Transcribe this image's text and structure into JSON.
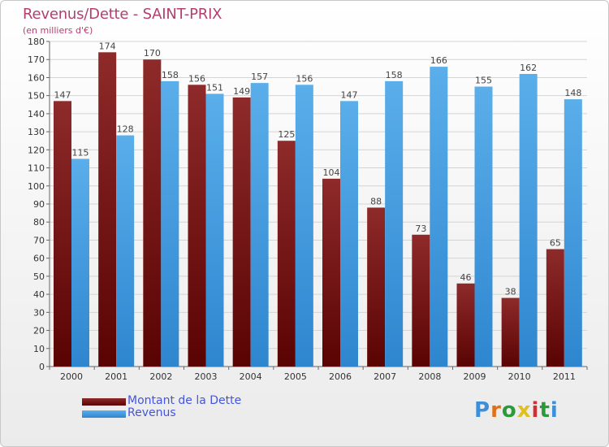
{
  "chart_data": {
    "type": "bar",
    "title": "Revenus/Dette - SAINT-PRIX",
    "subtitle": "(en milliers d'€)",
    "categories": [
      "2000",
      "2001",
      "2002",
      "2003",
      "2004",
      "2005",
      "2006",
      "2007",
      "2008",
      "2009",
      "2010",
      "2011"
    ],
    "series": [
      {
        "name": "Montant de la Dette",
        "color": "#7a1515",
        "values": [
          147,
          174,
          170,
          156,
          149,
          125,
          104,
          88,
          73,
          46,
          38,
          65
        ]
      },
      {
        "name": "Revenus",
        "color": "#3d9be0",
        "values": [
          115,
          128,
          158,
          151,
          157,
          156,
          147,
          158,
          166,
          155,
          162,
          148
        ]
      }
    ],
    "ylim": [
      0,
      180
    ],
    "ytick_step": 10,
    "grid": true,
    "legend": "bottom-left"
  },
  "logo": {
    "letters": [
      "P",
      "r",
      "o",
      "x",
      "i",
      "t",
      "i"
    ],
    "colors": [
      "#3c8fd8",
      "#e0701a",
      "#2b9a3a",
      "#e0c020",
      "#d03030",
      "#2b9a3a",
      "#3c8fd8"
    ]
  }
}
